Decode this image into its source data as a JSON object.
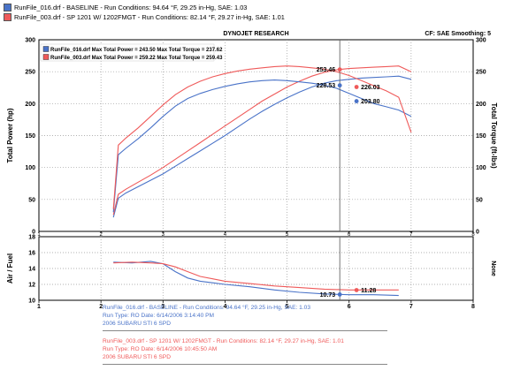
{
  "legend": {
    "run1": {
      "text": "RunFile_016.drf - BASELINE  -  Run Conditions: 94.64 °F, 29.25 in-Hg, SAE: 1.03",
      "color": "#4a73c8"
    },
    "run2": {
      "text": "RunFile_003.drf - SP 1201 W/ 1202FMGT  -  Run Conditions: 82.14 °F, 29.27 in-Hg, SAE: 1.01",
      "color": "#ef5a5a"
    }
  },
  "header": {
    "brand": "DYNOJET RESEARCH",
    "cf": "CF: SAE  Smoothing: 5"
  },
  "max_box": {
    "line1": "RunFile_016.drf Max Total Power = 243.50    Max Total Torque = 237.62",
    "line2": "RunFile_003.drf Max Total Power = 259.22    Max Total Torque = 259.43"
  },
  "bottom_info": {
    "run1": [
      "RunFile_016.drf - BASELINE  -  Run Conditions: 94.64 °F, 29.25 in-Hg, SAE: 1.03",
      "Run Type: RO  Date: 6/14/2006 3:14:40 PM",
      "2006 SUBARU STI 6 SPD"
    ],
    "run2": [
      "RunFile_003.drf - SP 1201 W/ 1202FMGT -  Run Conditions: 82.14 °F, 29.27 in-Hg, SAE: 1.01",
      "Run Type: RO  Date: 6/14/2006 10:45:50 AM",
      "2006 SUBARU STI 6 SPD"
    ]
  },
  "chart_data": [
    {
      "type": "line",
      "ylabel": "Total Power (hp)",
      "y2label": "Total Torque (ft-lbs)",
      "xlim": [
        1,
        8
      ],
      "ylim": [
        0,
        300
      ],
      "y2lim": [
        0,
        300
      ],
      "x_ticks": [
        1,
        2,
        3,
        4,
        5,
        6,
        7,
        8
      ],
      "y_ticks": [
        0,
        50,
        100,
        150,
        200,
        250,
        300
      ],
      "y2_ticks": [
        0,
        50,
        100,
        150,
        200,
        250,
        300
      ],
      "grid": true,
      "cursor_x": 5.85,
      "series": [
        {
          "name": "RunFile_016.drf",
          "measure": "power",
          "color": "#4a73c8",
          "x": [
            2.2,
            2.28,
            2.4,
            2.6,
            2.8,
            3.0,
            3.2,
            3.4,
            3.6,
            3.8,
            4.0,
            4.2,
            4.4,
            4.6,
            4.8,
            5.0,
            5.2,
            5.4,
            5.6,
            5.8,
            6.0,
            6.2,
            6.4,
            6.6,
            6.8,
            7.0
          ],
          "y": [
            22,
            52,
            60,
            70,
            80,
            90,
            102,
            114,
            126,
            138,
            150,
            163,
            176,
            188,
            199,
            209,
            218,
            226,
            232,
            236,
            238,
            240,
            241,
            242,
            243,
            238
          ]
        },
        {
          "name": "RunFile_003.drf",
          "measure": "power",
          "color": "#ef5a5a",
          "x": [
            2.2,
            2.28,
            2.4,
            2.6,
            2.8,
            3.0,
            3.2,
            3.4,
            3.6,
            3.8,
            4.0,
            4.2,
            4.4,
            4.6,
            4.8,
            5.0,
            5.2,
            5.4,
            5.6,
            5.8,
            6.0,
            6.2,
            6.4,
            6.6,
            6.8,
            7.0
          ],
          "y": [
            26,
            58,
            66,
            77,
            88,
            100,
            113,
            126,
            139,
            152,
            165,
            178,
            191,
            204,
            215,
            226,
            235,
            243,
            249,
            253,
            255,
            256,
            257,
            258,
            259,
            250
          ]
        },
        {
          "name": "RunFile_016.drf",
          "measure": "torque",
          "color": "#4a73c8",
          "x": [
            2.2,
            2.28,
            2.4,
            2.6,
            2.8,
            3.0,
            3.2,
            3.4,
            3.6,
            3.8,
            4.0,
            4.2,
            4.4,
            4.6,
            4.8,
            5.0,
            5.2,
            5.4,
            5.6,
            5.8,
            6.0,
            6.2,
            6.4,
            6.6,
            6.8,
            7.0
          ],
          "y": [
            30,
            120,
            130,
            145,
            162,
            180,
            196,
            208,
            216,
            222,
            227,
            231,
            234,
            236,
            237,
            236,
            234,
            232,
            229,
            224,
            216,
            208,
            200,
            195,
            190,
            180
          ]
        },
        {
          "name": "RunFile_003.drf",
          "measure": "torque",
          "color": "#ef5a5a",
          "x": [
            2.2,
            2.28,
            2.4,
            2.6,
            2.8,
            3.0,
            3.2,
            3.4,
            3.6,
            3.8,
            4.0,
            4.2,
            4.4,
            4.6,
            4.8,
            5.0,
            5.2,
            5.4,
            5.6,
            5.8,
            6.0,
            6.2,
            6.4,
            6.6,
            6.8,
            7.0
          ],
          "y": [
            35,
            135,
            146,
            162,
            180,
            198,
            214,
            226,
            235,
            242,
            247,
            251,
            254,
            256,
            258,
            259,
            258,
            256,
            254,
            250,
            244,
            236,
            228,
            220,
            210,
            155
          ]
        }
      ],
      "markers": [
        {
          "label": "253.46",
          "x": 5.85,
          "y": 253.46,
          "color": "#ef5a5a"
        },
        {
          "label": "226.03",
          "x": 6.12,
          "y": 226.03,
          "color": "#ef5a5a"
        },
        {
          "label": "228.53",
          "x": 5.85,
          "y": 228.53,
          "color": "#4a73c8"
        },
        {
          "label": "203.80",
          "x": 6.12,
          "y": 203.8,
          "color": "#4a73c8"
        }
      ]
    },
    {
      "type": "line",
      "ylabel": "Air / Fuel",
      "y2label": "None",
      "xlim": [
        1,
        8
      ],
      "ylim": [
        10,
        18
      ],
      "x_ticks": [
        1,
        2,
        3,
        4,
        5,
        6,
        7,
        8
      ],
      "y_ticks": [
        10,
        12,
        14,
        16,
        18
      ],
      "grid": true,
      "cursor_x": 5.85,
      "series": [
        {
          "name": "RunFile_016.drf",
          "color": "#4a73c8",
          "x": [
            2.2,
            2.5,
            2.8,
            3.0,
            3.2,
            3.4,
            3.6,
            3.8,
            4.0,
            4.4,
            4.8,
            5.2,
            5.6,
            6.0,
            6.4,
            6.8
          ],
          "y": [
            14.8,
            14.7,
            14.9,
            14.6,
            13.6,
            12.8,
            12.4,
            12.2,
            12.0,
            11.7,
            11.3,
            11.0,
            10.8,
            10.7,
            10.7,
            10.6
          ]
        },
        {
          "name": "RunFile_003.drf",
          "color": "#ef5a5a",
          "x": [
            2.2,
            2.5,
            2.8,
            3.0,
            3.2,
            3.4,
            3.6,
            3.8,
            4.0,
            4.4,
            4.8,
            5.2,
            5.6,
            6.0,
            6.4,
            6.8
          ],
          "y": [
            14.7,
            14.8,
            14.7,
            14.6,
            14.2,
            13.6,
            13.0,
            12.7,
            12.4,
            12.1,
            11.8,
            11.6,
            11.4,
            11.3,
            11.3,
            11.3
          ]
        }
      ],
      "markers": [
        {
          "label": "10.73",
          "x": 5.85,
          "y": 10.73,
          "color": "#4a73c8"
        },
        {
          "label": "11.28",
          "x": 6.12,
          "y": 11.28,
          "color": "#ef5a5a"
        }
      ]
    }
  ]
}
